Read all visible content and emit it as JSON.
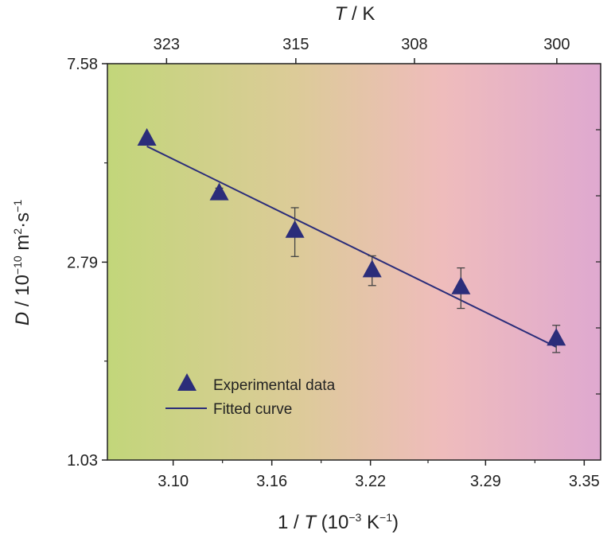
{
  "chart_data": {
    "type": "scatter",
    "x_scale": "linear",
    "y_scale": "log",
    "xlim": [
      3.06,
      3.36
    ],
    "ylim": [
      1.03,
      7.58
    ],
    "x_ticks": [
      3.1,
      3.16,
      3.22,
      3.29,
      3.35
    ],
    "x_tick_labels": [
      "3.10",
      "3.16",
      "3.22",
      "3.29",
      "3.35"
    ],
    "y_ticks": [
      1.03,
      2.79,
      7.58
    ],
    "y_tick_labels": [
      "1.03",
      "2.79",
      "7.58"
    ],
    "top_axis": {
      "label_italic": "T",
      "label_rest": " / K",
      "ticks": [
        323,
        315,
        308,
        300
      ],
      "tick_labels": [
        "323",
        "315",
        "308",
        "300"
      ]
    },
    "xlabel": {
      "pre": "1 / ",
      "italic": "T",
      "post": " (10",
      "sup": "−3",
      "post2": " K",
      "sup2": "−1",
      "end": ")"
    },
    "ylabel": {
      "italic": "D",
      "post": " / 10",
      "sup": "−10",
      "post2": " m",
      "sup2": "2",
      "post3": "·s",
      "sup3": "−1"
    },
    "series": [
      {
        "name": "Experimental data",
        "marker": "triangle",
        "color": "#2b2d7a",
        "x": [
          3.084,
          3.128,
          3.174,
          3.221,
          3.275,
          3.333
        ],
        "y": [
          5.2,
          3.95,
          3.27,
          2.68,
          2.46,
          1.9
        ],
        "err": [
          0.08,
          0.1,
          0.4,
          0.2,
          0.25,
          0.13
        ]
      },
      {
        "name": "Fitted curve",
        "type": "line",
        "color": "#2b2d7a",
        "x": [
          3.084,
          3.333
        ],
        "y": [
          5.0,
          1.82
        ]
      }
    ],
    "legend": {
      "position": "bottom-left"
    },
    "background_gradient": [
      "#c2d67a",
      "#dccb98",
      "#efbcbc",
      "#dfa9d0"
    ],
    "grid": false
  }
}
